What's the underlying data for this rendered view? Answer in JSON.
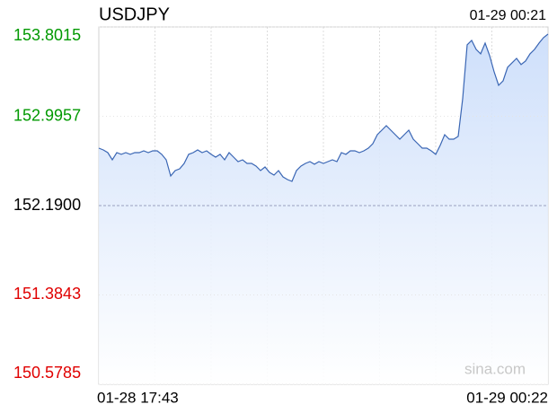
{
  "chart_data": {
    "type": "line",
    "title": "USDJPY",
    "subtitle": "01-29 00:21",
    "watermark": "sina.com",
    "categories": [
      "01-28 17:43",
      null,
      null,
      null,
      null,
      null,
      null,
      null,
      null,
      null,
      null,
      null,
      null,
      null,
      null,
      null,
      null,
      null,
      null,
      null,
      null,
      null,
      null,
      null,
      null,
      null,
      null,
      null,
      null,
      null,
      null,
      null,
      null,
      null,
      null,
      null,
      null,
      null,
      null,
      null,
      null,
      null,
      null,
      null,
      null,
      null,
      null,
      null,
      null,
      null,
      null,
      null,
      null,
      null,
      null,
      null,
      null,
      null,
      null,
      null,
      null,
      null,
      null,
      null,
      null,
      null,
      null,
      null,
      null,
      null,
      null,
      null,
      null,
      null,
      null,
      null,
      null,
      null,
      null,
      null,
      null,
      null,
      null,
      null,
      null,
      null,
      null,
      null,
      null,
      null,
      null,
      null,
      null,
      null,
      null,
      null,
      null,
      null,
      null,
      null,
      "01-29 00:22"
    ],
    "series": [
      {
        "name": "USDJPY",
        "color": "#3a66b4",
        "values": [
          152.708,
          152.692,
          152.668,
          152.603,
          152.668,
          152.652,
          152.668,
          152.652,
          152.668,
          152.668,
          152.684,
          152.668,
          152.684,
          152.684,
          152.652,
          152.603,
          152.457,
          152.506,
          152.522,
          152.571,
          152.652,
          152.668,
          152.692,
          152.668,
          152.684,
          152.652,
          152.627,
          152.652,
          152.603,
          152.668,
          152.627,
          152.587,
          152.603,
          152.571,
          152.571,
          152.546,
          152.506,
          152.538,
          152.49,
          152.465,
          152.506,
          152.449,
          152.425,
          152.409,
          152.506,
          152.546,
          152.571,
          152.587,
          152.563,
          152.587,
          152.571,
          152.587,
          152.603,
          152.587,
          152.668,
          152.652,
          152.684,
          152.684,
          152.668,
          152.684,
          152.708,
          152.749,
          152.83,
          152.87,
          152.911,
          152.87,
          152.83,
          152.789,
          152.83,
          152.87,
          152.789,
          152.749,
          152.708,
          152.708,
          152.684,
          152.652,
          152.733,
          152.83,
          152.789,
          152.789,
          152.814,
          153.154,
          153.64,
          153.68,
          153.599,
          153.559,
          153.656,
          153.543,
          153.397,
          153.275,
          153.316,
          153.437,
          153.478,
          153.518,
          153.462,
          153.494,
          153.559,
          153.599,
          153.656,
          153.705,
          153.737
        ]
      }
    ],
    "ylim": [
      150.5785,
      153.8015
    ],
    "yticks": [
      153.8015,
      152.9957,
      {
        "value": 152.19,
        "label": "152.1900"
      },
      151.3843,
      150.5785
    ],
    "ytick_colors": [
      "#009900",
      "#009900",
      "#000000",
      "#e00000",
      "#e00000"
    ],
    "area_fill": true
  }
}
